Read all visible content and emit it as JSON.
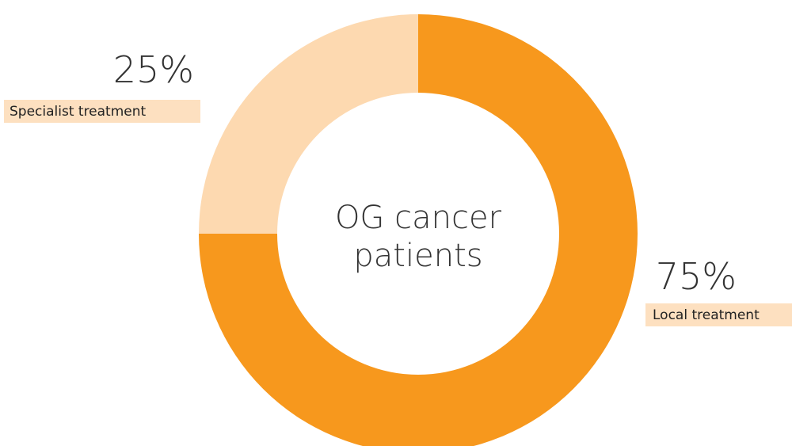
{
  "chart_data": {
    "type": "donut",
    "center_text": [
      "OG cancer",
      "patients"
    ],
    "categories": [
      "Local treatment",
      "Specialist treatment"
    ],
    "values": [
      75,
      25
    ],
    "value_labels": [
      "75%",
      "25%"
    ],
    "colors": [
      "#f7981d",
      "#fdd9b0"
    ]
  }
}
